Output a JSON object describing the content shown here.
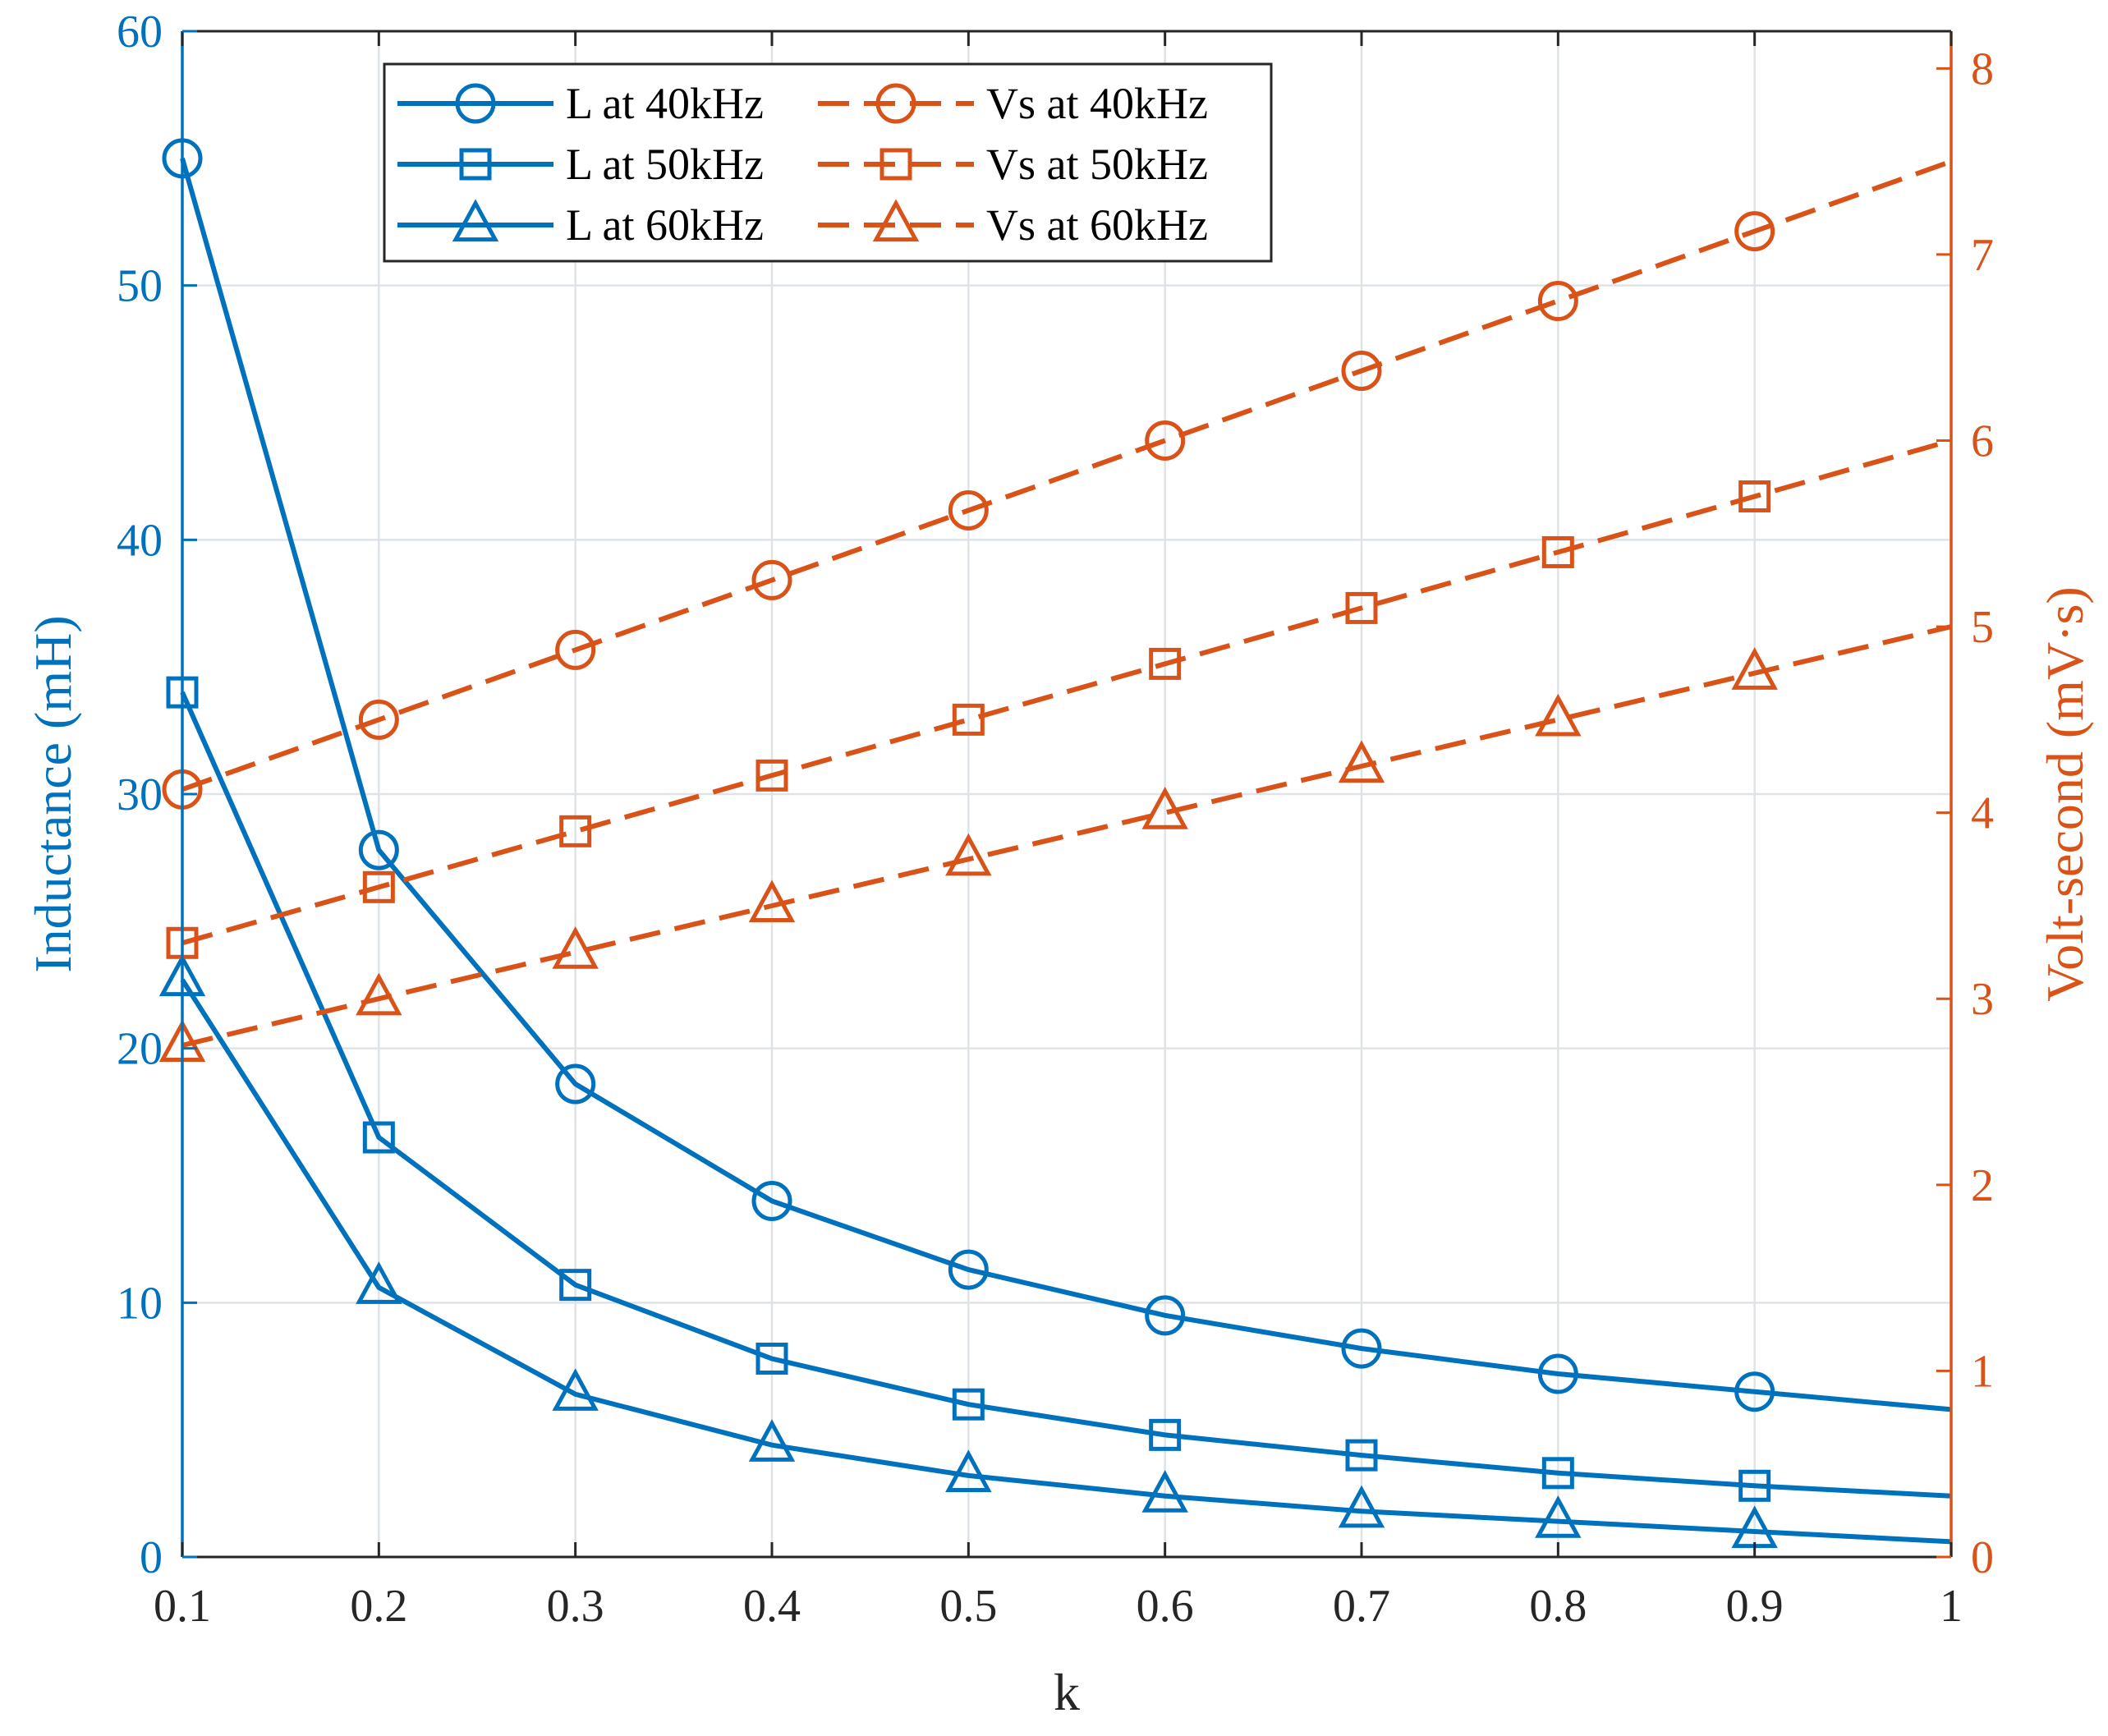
{
  "chart_data": {
    "type": "line",
    "title": "",
    "xlabel": "k",
    "ylabel_left": "Inductance (mH)",
    "ylabel_right": "Volt-second (mV·s)",
    "xlim": [
      0.1,
      1
    ],
    "ylim_left": [
      0,
      60
    ],
    "ylim_right": [
      0,
      8.2
    ],
    "xticks": [
      0.1,
      0.2,
      0.3,
      0.4,
      0.5,
      0.6,
      0.7,
      0.8,
      0.9,
      1
    ],
    "xtick_labels": [
      "0.1",
      "0.2",
      "0.3",
      "0.4",
      "0.5",
      "0.6",
      "0.7",
      "0.8",
      "0.9",
      "1"
    ],
    "yticks_left": [
      0,
      10,
      20,
      30,
      40,
      50,
      60
    ],
    "ytick_labels_left": [
      "0",
      "10",
      "20",
      "30",
      "40",
      "50",
      "60"
    ],
    "yticks_right": [
      0,
      1,
      2,
      3,
      4,
      5,
      6,
      7,
      8
    ],
    "ytick_labels_right": [
      "0",
      "1",
      "2",
      "3",
      "4",
      "5",
      "6",
      "7",
      "8"
    ],
    "grid": true,
    "legend_position": "top-left",
    "colors": {
      "left": "#0072BD",
      "right": "#D95319"
    },
    "marker_x": [
      0.1,
      0.2,
      0.3,
      0.4,
      0.5,
      0.6,
      0.7,
      0.8,
      0.9
    ],
    "series": [
      {
        "name": "L at 40kHz",
        "axis": "left",
        "marker": "circle",
        "style": "solid",
        "color": "#0072BD",
        "x": [
          0.1,
          0.2,
          0.3,
          0.4,
          0.5,
          0.6,
          0.7,
          0.8,
          0.9,
          1.0
        ],
        "values": [
          55.0,
          27.8,
          18.6,
          14.0,
          11.3,
          9.5,
          8.2,
          7.2,
          6.5,
          5.8
        ]
      },
      {
        "name": "L at 50kHz",
        "axis": "left",
        "marker": "square",
        "style": "solid",
        "color": "#0072BD",
        "x": [
          0.1,
          0.2,
          0.3,
          0.4,
          0.5,
          0.6,
          0.7,
          0.8,
          0.9,
          1.0
        ],
        "values": [
          34.0,
          16.5,
          10.7,
          7.8,
          6.0,
          4.8,
          4.0,
          3.3,
          2.8,
          2.4
        ]
      },
      {
        "name": "L at 60kHz",
        "axis": "left",
        "marker": "triangle",
        "style": "solid",
        "color": "#0072BD",
        "x": [
          0.1,
          0.2,
          0.3,
          0.4,
          0.5,
          0.6,
          0.7,
          0.8,
          0.9,
          1.0
        ],
        "values": [
          22.7,
          10.6,
          6.4,
          4.4,
          3.2,
          2.4,
          1.8,
          1.4,
          1.0,
          0.6
        ]
      },
      {
        "name": "Vs at 40kHz",
        "axis": "right",
        "marker": "circle",
        "style": "dashed",
        "color": "#D95319",
        "x": [
          0.1,
          0.2,
          0.3,
          0.4,
          0.5,
          0.6,
          0.7,
          0.8,
          0.9,
          1.0
        ],
        "values": [
          4.125,
          4.5,
          4.875,
          5.25,
          5.625,
          6.0,
          6.375,
          6.75,
          7.125,
          7.5
        ]
      },
      {
        "name": "Vs at 50kHz",
        "axis": "right",
        "marker": "square",
        "style": "dashed",
        "color": "#D95319",
        "x": [
          0.1,
          0.2,
          0.3,
          0.4,
          0.5,
          0.6,
          0.7,
          0.8,
          0.9,
          1.0
        ],
        "values": [
          3.3,
          3.6,
          3.9,
          4.2,
          4.5,
          4.8,
          5.1,
          5.4,
          5.7,
          6.0
        ]
      },
      {
        "name": "Vs at 60kHz",
        "axis": "right",
        "marker": "triangle",
        "style": "dashed",
        "color": "#D95319",
        "x": [
          0.1,
          0.2,
          0.3,
          0.4,
          0.5,
          0.6,
          0.7,
          0.8,
          0.9,
          1.0
        ],
        "values": [
          2.75,
          3.0,
          3.25,
          3.5,
          3.75,
          4.0,
          4.25,
          4.5,
          4.75,
          5.0
        ]
      }
    ]
  }
}
